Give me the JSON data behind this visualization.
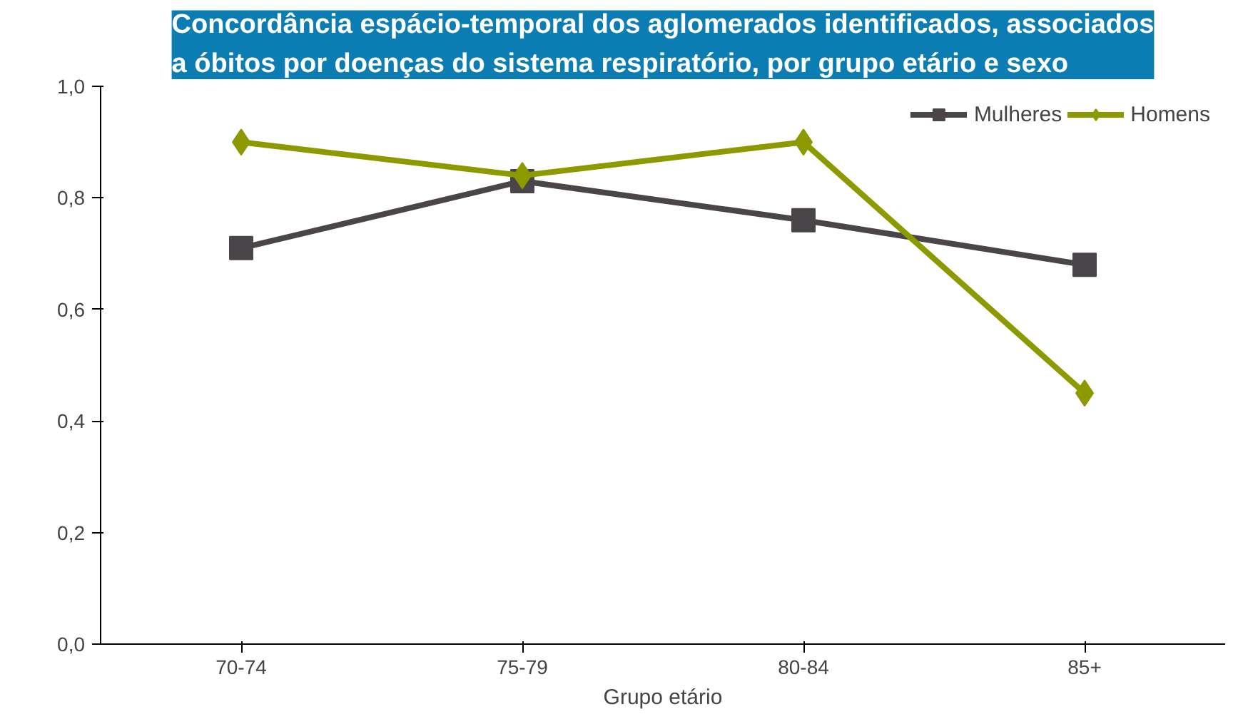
{
  "chart_data": {
    "type": "line",
    "title": "Concordância espácio-temporal dos aglomerados identificados, associados a óbitos por doenças do sistema respiratório, por grupo etário e sexo",
    "xlabel": "Grupo etário",
    "categories": [
      "70-74",
      "75-79",
      "80-84",
      "85+"
    ],
    "series": [
      {
        "name": "Mulheres",
        "color": "#4a4548",
        "marker": "square",
        "values": [
          0.71,
          0.83,
          0.76,
          0.68
        ]
      },
      {
        "name": "Homens",
        "color": "#8c9a00",
        "marker": "diamond",
        "values": [
          0.9,
          0.84,
          0.9,
          0.45
        ]
      }
    ],
    "ylim": [
      0,
      1
    ],
    "yticks": [
      {
        "value": 0,
        "label": "0,0"
      },
      {
        "value": 0.2,
        "label": "0,2"
      },
      {
        "value": 0.4,
        "label": "0,4"
      },
      {
        "value": 0.6,
        "label": "0,6"
      },
      {
        "value": 0.8,
        "label": "0,8"
      },
      {
        "value": 1,
        "label": "1,0"
      }
    ],
    "grid": false,
    "legend": "top right"
  }
}
